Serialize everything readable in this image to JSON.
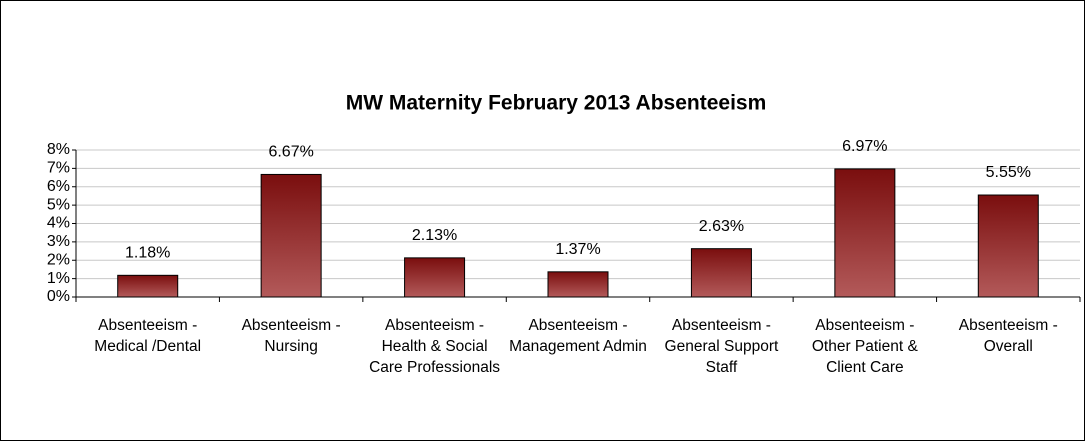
{
  "chart_data": {
    "type": "bar",
    "title": "MW Maternity February 2013 Absenteeism",
    "categories": [
      "Absenteeism - Medical /Dental",
      "Absenteeism - Nursing",
      "Absenteeism - Health & Social Care Professionals",
      "Absenteeism - Management Admin",
      "Absenteeism - General Support Staff",
      "Absenteeism - Other Patient & Client Care",
      "Absenteeism - Overall"
    ],
    "values": [
      1.18,
      6.67,
      2.13,
      1.37,
      2.63,
      6.97,
      5.55
    ],
    "value_labels": [
      "1.18%",
      "6.67%",
      "2.13%",
      "1.37%",
      "2.63%",
      "6.97%",
      "5.55%"
    ],
    "color": "#8b1a1a",
    "ylim": [
      0,
      8
    ],
    "yticks": [
      {
        "value": 0,
        "label": "0%"
      },
      {
        "value": 1,
        "label": "1%"
      },
      {
        "value": 2,
        "label": "2%"
      },
      {
        "value": 3,
        "label": "3%"
      },
      {
        "value": 4,
        "label": "4%"
      },
      {
        "value": 5,
        "label": "5%"
      },
      {
        "value": 6,
        "label": "6%"
      },
      {
        "value": 7,
        "label": "7%"
      },
      {
        "value": 8,
        "label": "8%"
      }
    ],
    "grid": true
  }
}
